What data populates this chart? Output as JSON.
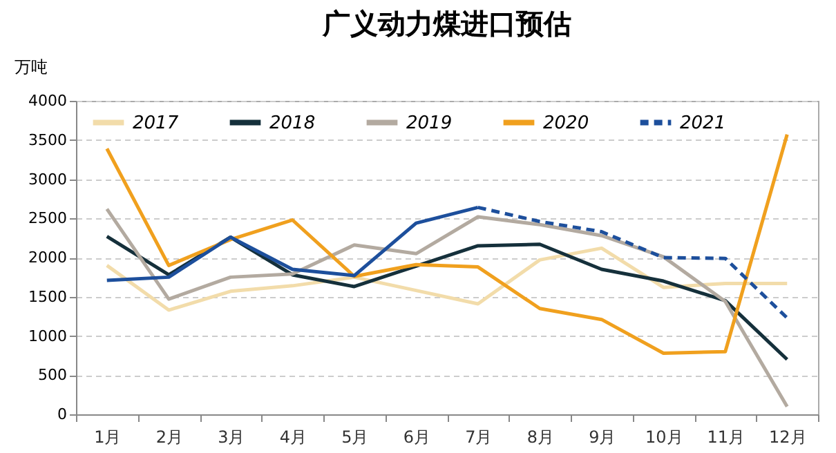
{
  "chart_data": {
    "type": "line",
    "title": "广义动力煤进口预估",
    "ylabel": "万吨",
    "categories": [
      "1月",
      "2月",
      "3月",
      "4月",
      "5月",
      "6月",
      "7月",
      "8月",
      "9月",
      "10月",
      "11月",
      "12月"
    ],
    "series": [
      {
        "name": "2017",
        "color": "#f2dcaa",
        "line_style": "solid",
        "values": [
          1900,
          1330,
          1570,
          1640,
          1750,
          1580,
          1410,
          1970,
          2120,
          1620,
          1670,
          1670
        ]
      },
      {
        "name": "2018",
        "color": "#15303b",
        "line_style": "solid",
        "values": [
          2270,
          1780,
          2260,
          1780,
          1630,
          1890,
          2150,
          2170,
          1850,
          1700,
          1450,
          700
        ]
      },
      {
        "name": "2019",
        "color": "#b3aaa0",
        "line_style": "solid",
        "values": [
          2620,
          1470,
          1750,
          1790,
          2160,
          2050,
          2520,
          2420,
          2280,
          2010,
          1440,
          100
        ]
      },
      {
        "name": "2020",
        "color": "#f0a01e",
        "line_style": "solid",
        "values": [
          3390,
          1900,
          2230,
          2480,
          1760,
          1910,
          1880,
          1350,
          1210,
          780,
          800,
          3570
        ]
      },
      {
        "color": "#1d4f9c",
        "line_style": "solid",
        "values": [
          1710,
          1750,
          2260,
          1850,
          1770,
          2440,
          2640,
          null,
          null,
          null,
          null,
          null
        ]
      },
      {
        "name": "2021",
        "color": "#1d4f9c",
        "line_style": "dashed",
        "values": [
          null,
          null,
          null,
          null,
          null,
          null,
          2640,
          2460,
          2330,
          2000,
          1990,
          1230
        ]
      }
    ],
    "ylim": [
      0,
      4000
    ],
    "yticks": [
      0,
      500,
      1000,
      1500,
      2000,
      2500,
      3000,
      3500,
      4000
    ],
    "grid": "y",
    "legend": "top",
    "marker": "none"
  }
}
